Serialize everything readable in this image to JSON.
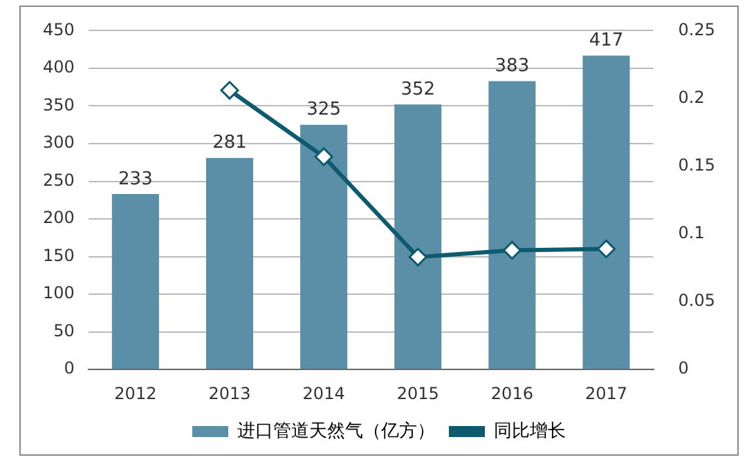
{
  "chart_data": {
    "type": "bar",
    "categories": [
      "2012",
      "2013",
      "2014",
      "2015",
      "2016",
      "2017"
    ],
    "series": [
      {
        "name": "进口管道天然气（亿方）",
        "color": "#5b8fa8",
        "values": [
          233,
          281,
          325,
          352,
          383,
          417
        ],
        "value_labels": [
          "233",
          "281",
          "325",
          "352",
          "383",
          "417"
        ]
      },
      {
        "name": "同比增长",
        "type": "line",
        "axis": "y2",
        "color": "#0e5a6e",
        "marker": "diamond",
        "values": [
          null,
          0.206,
          0.157,
          0.083,
          0.088,
          0.089
        ]
      }
    ],
    "ylim": [
      0,
      450
    ],
    "yticks": [
      0,
      50,
      100,
      150,
      200,
      250,
      300,
      350,
      400,
      450
    ],
    "y2lim": [
      0,
      0.25
    ],
    "y2ticks": [
      0,
      0.05,
      0.1,
      0.15,
      0.2,
      0.25
    ],
    "grid": "y",
    "legend": "bottom"
  }
}
